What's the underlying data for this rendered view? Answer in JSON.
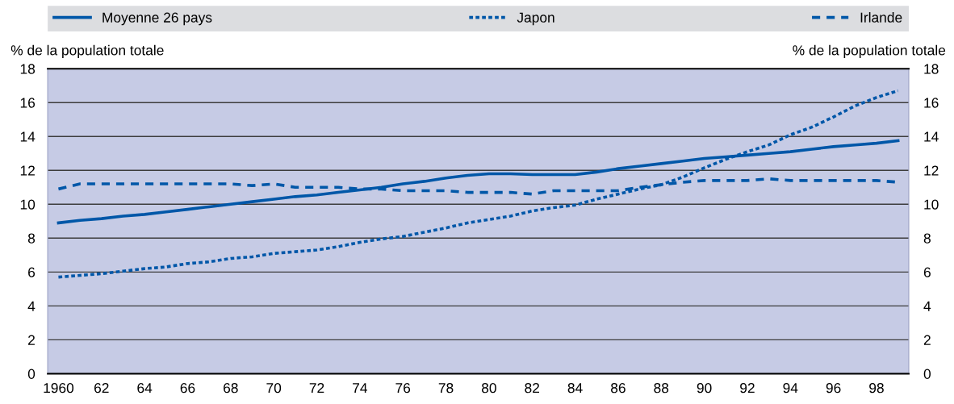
{
  "chart_data": {
    "type": "line",
    "categories": [
      "1960",
      null,
      "62",
      null,
      "64",
      null,
      "66",
      null,
      "68",
      null,
      "70",
      null,
      "72",
      null,
      "74",
      null,
      "76",
      null,
      "78",
      null,
      "80",
      null,
      "82",
      null,
      "84",
      null,
      "86",
      null,
      "88",
      null,
      "90",
      null,
      "92",
      null,
      "94",
      null,
      "96",
      null,
      "98",
      null
    ],
    "series": [
      {
        "name": "Moyenne 26 pays",
        "color": "#0057a8",
        "line_style": "solid",
        "values": [
          8.9,
          9.05,
          9.15,
          9.3,
          9.4,
          9.55,
          9.7,
          9.85,
          10.0,
          10.15,
          10.3,
          10.45,
          10.55,
          10.7,
          10.85,
          11.0,
          11.2,
          11.35,
          11.55,
          11.7,
          11.8,
          11.8,
          11.75,
          11.75,
          11.75,
          11.9,
          12.1,
          12.25,
          12.4,
          12.55,
          12.7,
          12.8,
          12.9,
          13.0,
          13.1,
          13.25,
          13.4,
          13.5,
          13.6,
          13.75
        ]
      },
      {
        "name": "Japon",
        "color": "#0057a8",
        "line_style": "dotted",
        "values": [
          5.7,
          5.8,
          5.9,
          6.05,
          6.2,
          6.3,
          6.5,
          6.6,
          6.8,
          6.9,
          7.1,
          7.2,
          7.3,
          7.5,
          7.75,
          7.95,
          8.1,
          8.35,
          8.6,
          8.9,
          9.1,
          9.3,
          9.6,
          9.8,
          9.95,
          10.3,
          10.6,
          10.9,
          11.15,
          11.6,
          12.15,
          12.65,
          13.1,
          13.5,
          14.1,
          14.55,
          15.15,
          15.8,
          16.3,
          16.7
        ]
      },
      {
        "name": "Irlande",
        "color": "#0057a8",
        "line_style": "dashed",
        "values": [
          10.9,
          11.2,
          11.2,
          11.2,
          11.2,
          11.2,
          11.2,
          11.2,
          11.2,
          11.1,
          11.2,
          11.0,
          11.0,
          11.0,
          10.9,
          10.9,
          10.8,
          10.8,
          10.8,
          10.7,
          10.7,
          10.7,
          10.6,
          10.8,
          10.8,
          10.8,
          10.8,
          11.0,
          11.15,
          11.3,
          11.4,
          11.4,
          11.4,
          11.5,
          11.4,
          11.4,
          11.4,
          11.4,
          11.4,
          11.3
        ]
      }
    ],
    "ylabel": "% de la population totale",
    "y2label": "% de la population totale",
    "ylim": [
      0,
      18
    ],
    "yticks": [
      0,
      2,
      4,
      6,
      8,
      10,
      12,
      14,
      16,
      18
    ],
    "y2lim": [
      0,
      18
    ],
    "y2ticks": [
      0,
      2,
      4,
      6,
      8,
      10,
      12,
      14,
      16,
      18
    ],
    "grid": "y",
    "legend": "top"
  }
}
